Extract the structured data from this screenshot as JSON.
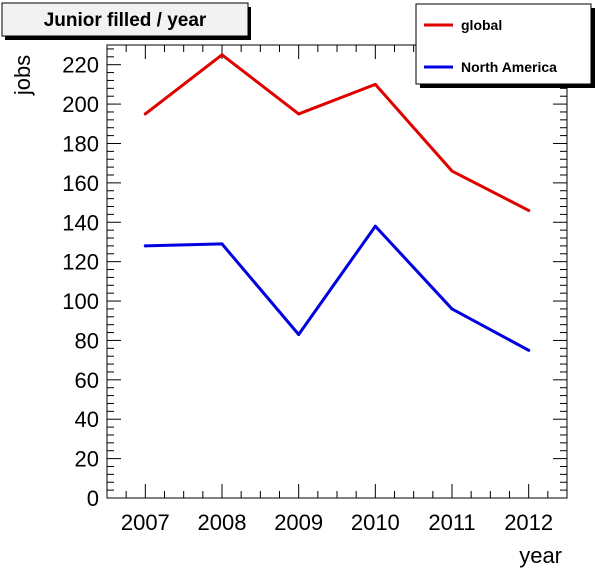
{
  "chart_data": {
    "type": "line",
    "title": "Junior filled / year",
    "xlabel": "year",
    "ylabel": "jobs",
    "x": [
      "2007",
      "2008",
      "2009",
      "2010",
      "2011",
      "2012"
    ],
    "xlim": [
      2006.5,
      2012.5
    ],
    "ylim": [
      0,
      230
    ],
    "yticks": [
      0,
      20,
      40,
      60,
      80,
      100,
      120,
      140,
      160,
      180,
      200,
      220
    ],
    "grid": false,
    "legend_position": "top-right",
    "series": [
      {
        "name": "global",
        "color": "#e00000",
        "values": [
          195,
          225,
          195,
          210,
          166,
          146
        ]
      },
      {
        "name": "North America",
        "color": "#0000e0",
        "values": [
          128,
          129,
          83,
          138,
          96,
          75
        ]
      }
    ]
  }
}
